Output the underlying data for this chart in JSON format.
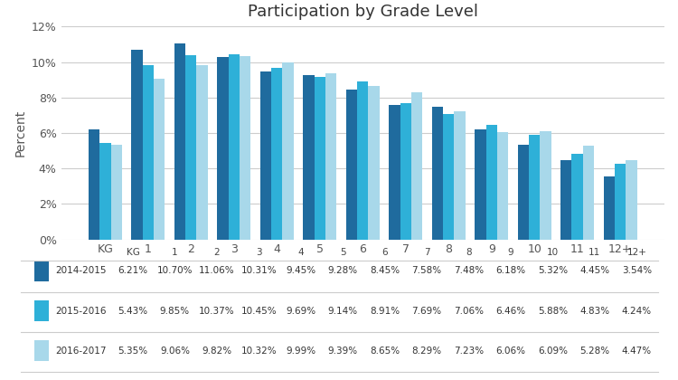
{
  "title": "Participation by Grade Level",
  "ylabel": "Percent",
  "categories": [
    "KG",
    "1",
    "2",
    "3",
    "4",
    "5",
    "6",
    "7",
    "8",
    "9",
    "10",
    "11",
    "12+"
  ],
  "series": [
    {
      "label": "2014-2015",
      "color": "#1F6B9E",
      "values": [
        6.21,
        10.7,
        11.06,
        10.31,
        9.45,
        9.28,
        8.45,
        7.58,
        7.48,
        6.18,
        5.32,
        4.45,
        3.54
      ]
    },
    {
      "label": "2015-2016",
      "color": "#2EB0D8",
      "values": [
        5.43,
        9.85,
        10.37,
        10.45,
        9.69,
        9.14,
        8.91,
        7.69,
        7.06,
        6.46,
        5.88,
        4.83,
        4.24
      ]
    },
    {
      "label": "2016-2017",
      "color": "#A8D8EA",
      "values": [
        5.35,
        9.06,
        9.82,
        10.32,
        9.99,
        9.39,
        8.65,
        8.29,
        7.23,
        6.06,
        6.09,
        5.28,
        4.47
      ]
    }
  ],
  "ylim": [
    0,
    0.12
  ],
  "yticks": [
    0,
    0.02,
    0.04,
    0.06,
    0.08,
    0.1,
    0.12
  ],
  "ytick_labels": [
    "0%",
    "2%",
    "4%",
    "6%",
    "8%",
    "10%",
    "12%"
  ],
  "background_color": "#ffffff",
  "grid_color": "#cccccc",
  "table_font_size": 7.5,
  "bar_width": 0.26
}
